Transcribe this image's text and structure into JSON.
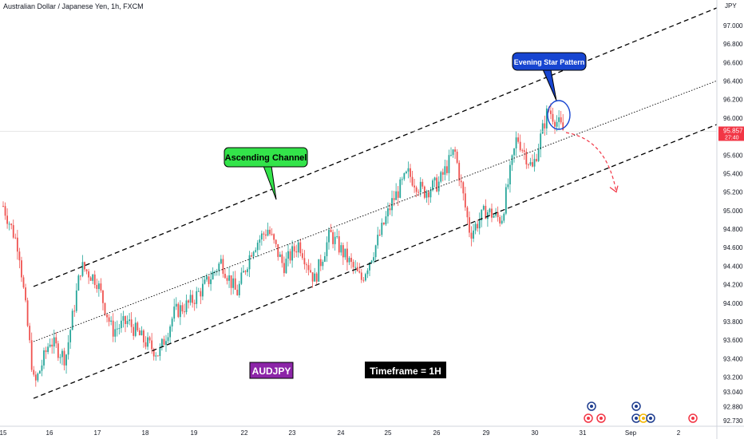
{
  "title": "Australian Dollar / Japanese Yen, 1h, FXCM",
  "currency_label": "JPY",
  "price_badge": {
    "price": "95.857",
    "countdown": "27:40"
  },
  "colors": {
    "up": "#26a69a",
    "down": "#ef5350",
    "badge_bg": "#f23645",
    "green_box": "#33e44a",
    "blue_box": "#1745d1",
    "purple_box": "#8c25a8",
    "black_box": "#000000",
    "axis_line": "#d1d4dc"
  },
  "annotations": {
    "channel_label": "Ascending Channel",
    "pattern_label": "Evening Star Pattern",
    "symbol_label": "AUDJPY",
    "timeframe_label": "Timeframe = 1H"
  },
  "chart_data": {
    "type": "candlestick",
    "title": "Australian Dollar / Japanese Yen, 1h, FXCM",
    "ylabel": "JPY",
    "ylim": [
      92.7,
      97.25
    ],
    "y_ticks": [
      92.73,
      92.88,
      93.04,
      93.2,
      93.4,
      93.6,
      93.8,
      94.0,
      94.2,
      94.4,
      94.6,
      94.8,
      95.0,
      95.2,
      95.4,
      95.6,
      95.8,
      96.0,
      96.2,
      96.4,
      96.6,
      96.8,
      97.0
    ],
    "y_tick_labels": [
      "92.730",
      "92.880",
      "93.040",
      "93.200",
      "93.400",
      "93.600",
      "93.800",
      "94.000",
      "94.200",
      "94.400",
      "94.600",
      "94.800",
      "95.000",
      "95.200",
      "95.400",
      "95.600",
      "95.800",
      "96.000",
      "96.200",
      "96.400",
      "96.600",
      "96.800",
      "97.000"
    ],
    "x_ticks": [
      "15",
      "16",
      "17",
      "18",
      "19",
      "22",
      "23",
      "24",
      "25",
      "26",
      "29",
      "30",
      "31",
      "Sep",
      "2"
    ],
    "current_price": 95.857,
    "close_path": [
      [
        "15",
        95.05
      ],
      [
        "15",
        94.6
      ],
      [
        "16",
        93.1
      ],
      [
        "16",
        93.6
      ],
      [
        "16",
        93.4
      ],
      [
        "17",
        94.4
      ],
      [
        "17",
        94.25
      ],
      [
        "17",
        93.7
      ],
      [
        "18",
        93.8
      ],
      [
        "18",
        93.6
      ],
      [
        "18",
        93.45
      ],
      [
        "19",
        93.9
      ],
      [
        "19",
        94.0
      ],
      [
        "19",
        94.2
      ],
      [
        "19",
        94.45
      ],
      [
        "22",
        94.1
      ],
      [
        "22",
        94.6
      ],
      [
        "22",
        94.8
      ],
      [
        "23",
        94.4
      ],
      [
        "23",
        94.65
      ],
      [
        "23",
        94.25
      ],
      [
        "24",
        94.75
      ],
      [
        "24",
        94.5
      ],
      [
        "24",
        94.25
      ],
      [
        "25",
        94.65
      ],
      [
        "25",
        95.1
      ],
      [
        "25",
        95.4
      ],
      [
        "26",
        95.2
      ],
      [
        "26",
        95.3
      ],
      [
        "26",
        95.65
      ],
      [
        "29",
        94.75
      ],
      [
        "29",
        95.0
      ],
      [
        "29",
        94.9
      ],
      [
        "30",
        95.8
      ],
      [
        "30",
        95.45
      ],
      [
        "30",
        96.1
      ],
      [
        "30",
        95.857
      ]
    ],
    "channel": {
      "upper": [
        [
          "16",
          94.25
        ],
        [
          "31",
          96.6
        ]
      ],
      "middle": [
        [
          "16",
          93.65
        ],
        [
          "31",
          95.85
        ]
      ],
      "lower": [
        [
          "16",
          93.04
        ],
        [
          "31",
          95.35
        ]
      ]
    },
    "projection": {
      "from": 95.86,
      "to": 95.2,
      "direction": "down"
    }
  }
}
